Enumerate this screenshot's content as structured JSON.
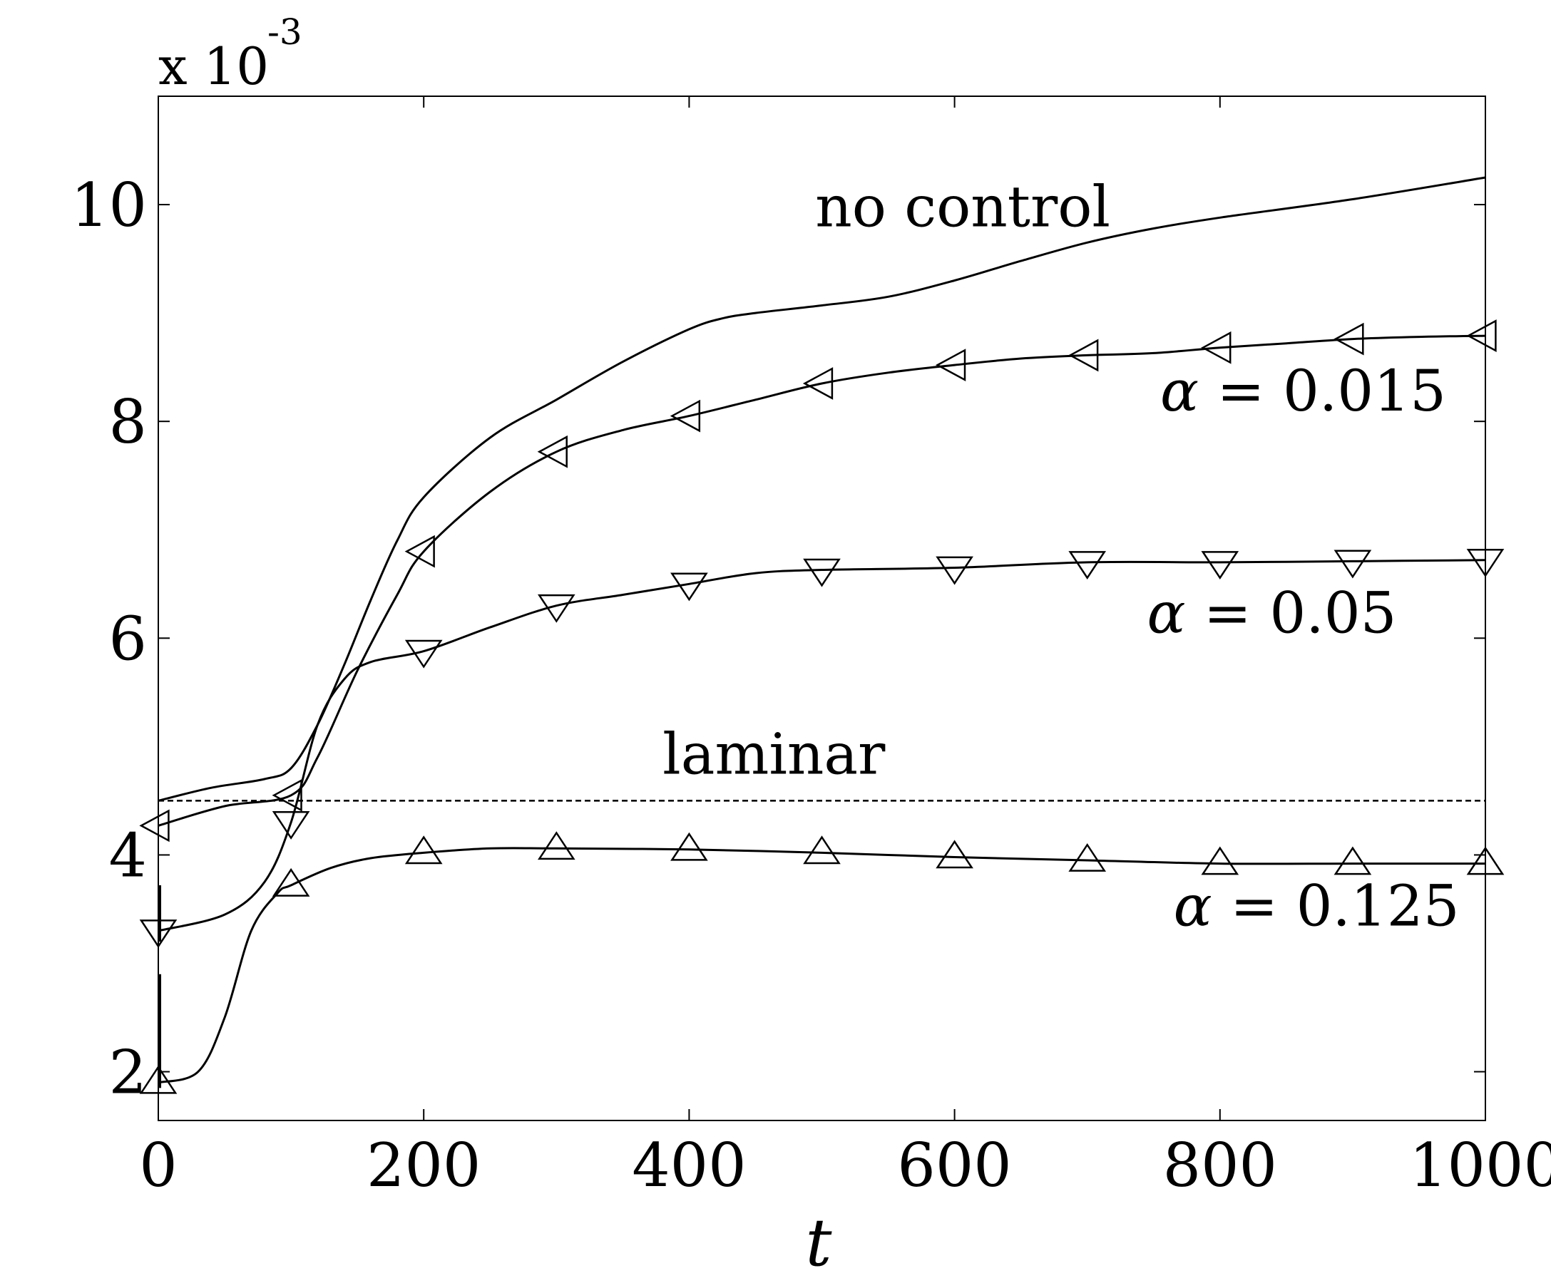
{
  "chart_data": {
    "type": "line",
    "title": "",
    "xlabel": "t",
    "ylabel": "",
    "y_scale_label": "x 10",
    "y_scale_exponent": "-3",
    "xlim": [
      0,
      1000
    ],
    "ylim": [
      1.55,
      11.0
    ],
    "xticks": [
      0,
      200,
      400,
      600,
      800,
      1000
    ],
    "yticks": [
      2,
      4,
      6,
      8,
      10
    ],
    "xtick_labels": [
      "0",
      "200",
      "400",
      "600",
      "800",
      "1000"
    ],
    "ytick_labels": [
      "2",
      "4",
      "6",
      "8",
      "10"
    ],
    "grid": false,
    "legend": "none",
    "color": "#000000",
    "series": [
      {
        "name": "no control",
        "marker": "none",
        "x": [
          0,
          40,
          80,
          100,
          120,
          140,
          160,
          180,
          200,
          250,
          300,
          350,
          400,
          425,
          450,
          500,
          550,
          600,
          650,
          700,
          750,
          800,
          900,
          1000
        ],
        "y": [
          4.5,
          4.62,
          4.7,
          4.8,
          5.2,
          5.75,
          6.35,
          6.9,
          7.3,
          7.85,
          8.2,
          8.55,
          8.85,
          8.95,
          9.0,
          9.07,
          9.15,
          9.3,
          9.48,
          9.65,
          9.78,
          9.88,
          10.05,
          10.25
        ]
      },
      {
        "name": "α = 0.015",
        "marker": "triangle-left",
        "x": [
          0,
          50,
          100,
          120,
          150,
          180,
          200,
          250,
          300,
          350,
          400,
          450,
          500,
          550,
          600,
          650,
          700,
          750,
          800,
          850,
          900,
          950,
          1000
        ],
        "y": [
          4.27,
          4.45,
          4.55,
          4.9,
          5.7,
          6.4,
          6.8,
          7.35,
          7.72,
          7.92,
          8.05,
          8.2,
          8.35,
          8.45,
          8.52,
          8.58,
          8.61,
          8.63,
          8.68,
          8.72,
          8.76,
          8.78,
          8.79
        ]
      },
      {
        "name": "α = 0.05",
        "marker": "triangle-down",
        "x": [
          0,
          50,
          80,
          100,
          120,
          140,
          160,
          200,
          250,
          300,
          350,
          400,
          450,
          500,
          600,
          700,
          800,
          900,
          1000
        ],
        "y": [
          3.3,
          3.45,
          3.75,
          4.3,
          5.2,
          5.62,
          5.78,
          5.88,
          6.1,
          6.3,
          6.4,
          6.5,
          6.6,
          6.63,
          6.65,
          6.7,
          6.7,
          6.71,
          6.72
        ]
      },
      {
        "name": "α = 0.125",
        "marker": "triangle-up",
        "x": [
          0,
          30,
          50,
          70,
          90,
          100,
          130,
          160,
          200,
          250,
          300,
          400,
          500,
          600,
          700,
          800,
          900,
          1000
        ],
        "y": [
          1.9,
          2.0,
          2.5,
          3.3,
          3.65,
          3.72,
          3.88,
          3.97,
          4.02,
          4.06,
          4.06,
          4.05,
          4.02,
          3.98,
          3.95,
          3.92,
          3.92,
          3.92
        ]
      },
      {
        "name": "laminar",
        "marker": "none",
        "style": "dashed",
        "x": [
          0,
          1000
        ],
        "y": [
          4.5,
          4.5
        ]
      }
    ],
    "markers": {
      "α = 0.015": {
        "x": [
          0,
          100,
          200,
          300,
          400,
          500,
          600,
          700,
          800,
          900,
          1000
        ],
        "y": [
          4.27,
          4.55,
          6.8,
          7.72,
          8.05,
          8.35,
          8.52,
          8.61,
          8.68,
          8.76,
          8.79
        ]
      },
      "α = 0.05": {
        "x": [
          0,
          100,
          200,
          300,
          400,
          500,
          600,
          700,
          800,
          900,
          1000
        ],
        "y": [
          3.3,
          4.3,
          5.88,
          6.3,
          6.5,
          6.63,
          6.65,
          6.7,
          6.7,
          6.71,
          6.72
        ]
      },
      "α = 0.125": {
        "x": [
          0,
          100,
          200,
          300,
          400,
          500,
          600,
          700,
          800,
          900,
          1000
        ],
        "y": [
          1.9,
          3.72,
          4.02,
          4.06,
          4.05,
          4.02,
          3.98,
          3.95,
          3.92,
          3.92,
          3.92
        ]
      }
    },
    "annotations": [
      {
        "text": "no control",
        "x": 495,
        "y": 9.8
      },
      {
        "text": "α = 0.015",
        "x": 755,
        "y": 8.1
      },
      {
        "text": "α = 0.05",
        "x": 745,
        "y": 6.05
      },
      {
        "text": "laminar",
        "x": 380,
        "y": 4.75
      },
      {
        "text": "α = 0.125",
        "x": 765,
        "y": 3.35
      }
    ],
    "spikes": [
      {
        "x": 0,
        "y_low": 1.85,
        "y_high": 2.9
      },
      {
        "x": 0,
        "y_low": 3.2,
        "y_high": 3.72
      }
    ]
  }
}
